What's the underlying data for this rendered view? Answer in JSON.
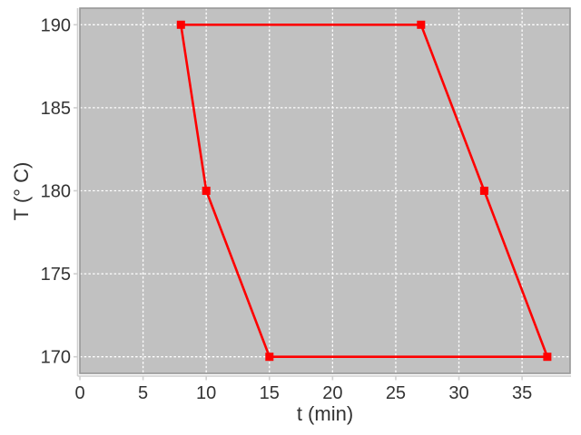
{
  "chart": {
    "x_axis_title": "t (min)",
    "y_axis_title": "T (° C)"
  },
  "chart_data": {
    "type": "line",
    "title": "",
    "xlabel": "t (min)",
    "ylabel": "T (° C)",
    "xlim": [
      0,
      38.8
    ],
    "ylim": [
      169,
      191
    ],
    "x_ticks": [
      0,
      5,
      10,
      15,
      20,
      25,
      30,
      35
    ],
    "y_ticks": [
      170,
      175,
      180,
      185,
      190
    ],
    "grid": {
      "show": true,
      "color": "#ffffff",
      "style": "dashed"
    },
    "legend_position": "none",
    "plot_background_color": "#c1c1c1",
    "plot_outline_color": "#989898",
    "axis_line_color": "#cfcfcf",
    "tick_label_color": "#333333",
    "series": [
      {
        "name": "temperature-cycle",
        "color": "#fe0000",
        "marker": "filled-square",
        "marker_size": 9,
        "line_width": 2.6,
        "closed": true,
        "points": [
          [
            8,
            190
          ],
          [
            10,
            180
          ],
          [
            15,
            170
          ],
          [
            37,
            170
          ],
          [
            32,
            180
          ],
          [
            27,
            190
          ]
        ]
      }
    ]
  }
}
